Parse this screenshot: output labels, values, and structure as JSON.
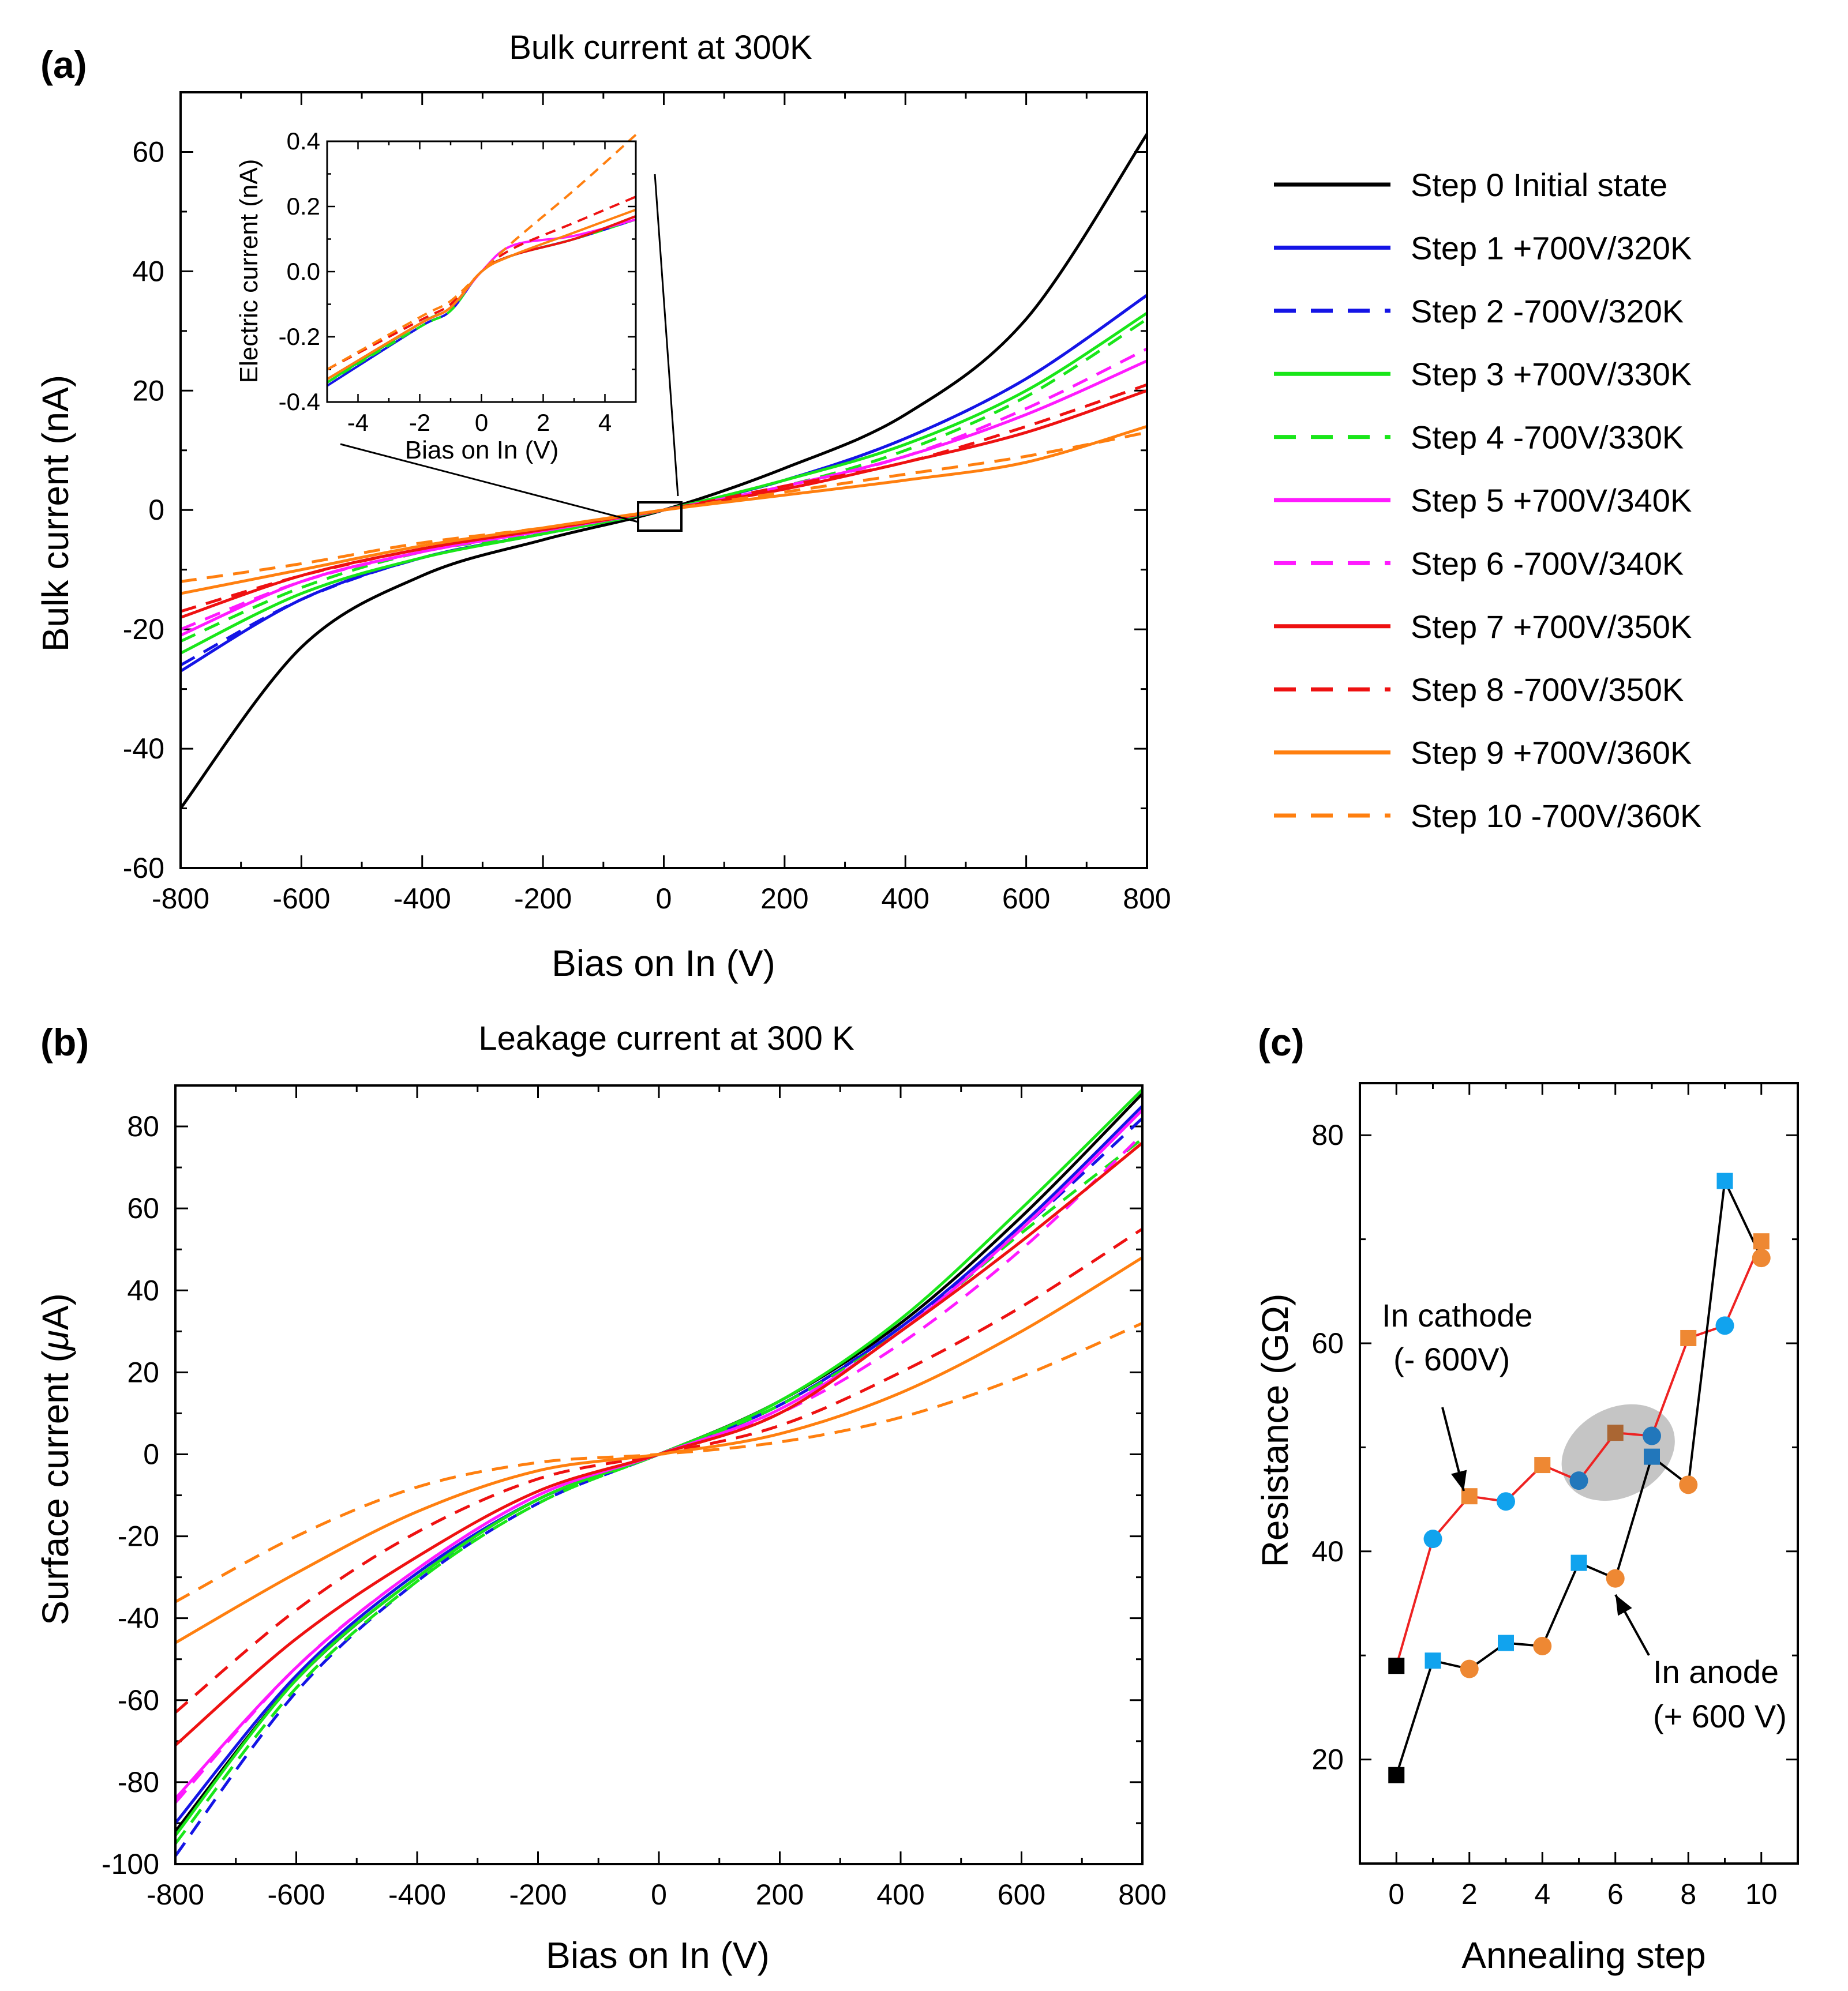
{
  "colors": {
    "black": "#000000",
    "blue": "#1414e6",
    "green": "#19e619",
    "magenta": "#ff1aff",
    "red": "#ee1111",
    "orange": "#ff7f0f",
    "c_red": "#ee2222",
    "c_orange": "#ee8833",
    "c_blue": "#11a3ee",
    "c_blue_dark": "#2277bb",
    "c_orange_dark": "#aa6633",
    "highlight": "#bbbbbb"
  },
  "legend": {
    "items": [
      {
        "label": "Step 0 Initial state",
        "color": "black",
        "dash": false
      },
      {
        "label": "Step 1 +700V/320K",
        "color": "blue",
        "dash": false
      },
      {
        "label": "Step 2 -700V/320K",
        "color": "blue",
        "dash": true
      },
      {
        "label": "Step 3 +700V/330K",
        "color": "green",
        "dash": false
      },
      {
        "label": "Step 4 -700V/330K",
        "color": "green",
        "dash": true
      },
      {
        "label": "Step 5 +700V/340K",
        "color": "magenta",
        "dash": false
      },
      {
        "label": "Step 6 -700V/340K",
        "color": "magenta",
        "dash": true
      },
      {
        "label": "Step 7 +700V/350K",
        "color": "red",
        "dash": false
      },
      {
        "label": "Step 8 -700V/350K",
        "color": "red",
        "dash": true
      },
      {
        "label": "Step 9 +700V/360K",
        "color": "orange",
        "dash": false
      },
      {
        "label": "Step 10 -700V/360K",
        "color": "orange",
        "dash": true
      }
    ]
  },
  "chart_data": [
    {
      "panel": "(a)",
      "type": "line",
      "title": "Bulk current at 300K",
      "xlabel": "Bias on In (V)",
      "ylabel": "Bulk current (nA)",
      "xlim": [
        -800,
        800
      ],
      "ylim": [
        -60,
        70
      ],
      "xticks": [
        -800,
        -600,
        -400,
        -200,
        0,
        200,
        400,
        600,
        800
      ],
      "yticks": [
        -60,
        -40,
        -20,
        0,
        20,
        40,
        60
      ],
      "x": [
        -800,
        -600,
        -400,
        -200,
        0,
        200,
        400,
        600,
        800
      ],
      "series": [
        {
          "name": "Step 0 Initial state",
          "color": "black",
          "dash": false,
          "values": [
            -50,
            -23,
            -11,
            -5,
            0,
            7,
            16,
            32,
            63
          ]
        },
        {
          "name": "Step 1 +700V/320K",
          "color": "blue",
          "dash": false,
          "values": [
            -27,
            -15,
            -8,
            -4,
            0,
            5,
            12,
            22,
            36
          ]
        },
        {
          "name": "Step 2 -700V/320K",
          "color": "blue",
          "dash": true,
          "values": [
            -26,
            -15,
            -8,
            -4,
            0,
            5,
            12,
            22,
            36
          ]
        },
        {
          "name": "Step 3 +700V/330K",
          "color": "green",
          "dash": false,
          "values": [
            -24,
            -14,
            -8,
            -4,
            0,
            5,
            11,
            20,
            33
          ]
        },
        {
          "name": "Step 4 -700V/330K",
          "color": "green",
          "dash": true,
          "values": [
            -22,
            -13,
            -7,
            -4,
            0,
            4,
            10,
            19,
            32
          ]
        },
        {
          "name": "Step 5 +700V/340K",
          "color": "magenta",
          "dash": false,
          "values": [
            -21,
            -12,
            -7,
            -3.5,
            0,
            4,
            9,
            16,
            25
          ]
        },
        {
          "name": "Step 6 -700V/340K",
          "color": "magenta",
          "dash": true,
          "values": [
            -20,
            -12,
            -7,
            -3.5,
            0,
            4,
            9,
            17,
            27
          ]
        },
        {
          "name": "Step 7 +700V/350K",
          "color": "red",
          "dash": false,
          "values": [
            -18,
            -11,
            -6.5,
            -3.3,
            0,
            3.5,
            8,
            13,
            20
          ]
        },
        {
          "name": "Step 8 -700V/350K",
          "color": "red",
          "dash": true,
          "values": [
            -17,
            -11,
            -6.5,
            -3.3,
            0,
            4,
            8,
            14,
            21
          ]
        },
        {
          "name": "Step 9 +700V/360K",
          "color": "orange",
          "dash": false,
          "values": [
            -14,
            -10,
            -6,
            -3,
            0,
            2.5,
            5,
            8,
            14
          ]
        },
        {
          "name": "Step 10 -700V/360K",
          "color": "orange",
          "dash": true,
          "values": [
            -12,
            -9,
            -5.5,
            -3,
            0,
            3,
            6,
            9,
            13
          ]
        }
      ],
      "inset": {
        "xlabel": "Bias on In (V)",
        "ylabel": "Electric current (nA)",
        "xlim": [
          -5,
          5
        ],
        "ylim": [
          -0.4,
          0.4
        ],
        "xticks": [
          -4,
          -2,
          0,
          2,
          4
        ],
        "yticks": [
          -0.4,
          -0.2,
          0.0,
          0.2,
          0.4
        ],
        "ytick_labels": [
          "-0.4",
          "-0.2",
          "0.0",
          "0.2",
          "0.4"
        ],
        "x": [
          -5,
          -2,
          -1,
          0,
          1,
          3,
          5
        ],
        "series": [
          {
            "name": "Step 1 +700V/320K",
            "color": "blue",
            "dash": false,
            "values": [
              -0.35,
              -0.17,
              -0.12,
              0.0,
              0.05,
              0.1,
              0.16
            ]
          },
          {
            "name": "Step 3 +700V/330K",
            "color": "green",
            "dash": false,
            "values": [
              -0.34,
              -0.16,
              -0.11,
              0.0,
              0.05,
              0.1,
              0.17
            ]
          },
          {
            "name": "Step 4 -700V/330K",
            "color": "green",
            "dash": true,
            "values": [
              -0.34,
              -0.17,
              -0.12,
              0.0,
              0.05,
              0.1,
              0.16
            ]
          },
          {
            "name": "Step 5 +700V/340K",
            "color": "magenta",
            "dash": false,
            "values": [
              -0.33,
              -0.16,
              -0.11,
              0.0,
              0.08,
              0.11,
              0.16
            ]
          },
          {
            "name": "Step 7 +700V/350K",
            "color": "red",
            "dash": false,
            "values": [
              -0.33,
              -0.16,
              -0.11,
              0.0,
              0.05,
              0.1,
              0.17
            ]
          },
          {
            "name": "Step 8 -700V/350K",
            "color": "red",
            "dash": true,
            "values": [
              -0.3,
              -0.15,
              -0.1,
              0.0,
              0.07,
              0.15,
              0.23
            ]
          },
          {
            "name": "Step 9 +700V/360K",
            "color": "orange",
            "dash": false,
            "values": [
              -0.33,
              -0.16,
              -0.11,
              0.0,
              0.05,
              0.12,
              0.19
            ]
          },
          {
            "name": "Step 10 -700V/360K",
            "color": "orange",
            "dash": true,
            "values": [
              -0.3,
              -0.14,
              -0.09,
              0.0,
              0.09,
              0.25,
              0.42
            ]
          }
        ]
      }
    },
    {
      "panel": "(b)",
      "type": "line",
      "title": "Leakage current at 300 K",
      "xlabel": "Bias on In (V)",
      "ylabel_prefix": "Surface current (",
      "ylabel_mu": "μ",
      "ylabel_suffix": "A)",
      "xlim": [
        -800,
        800
      ],
      "ylim": [
        -100,
        90
      ],
      "xticks": [
        -800,
        -600,
        -400,
        -200,
        0,
        200,
        400,
        600,
        800
      ],
      "yticks": [
        -100,
        -80,
        -60,
        -40,
        -20,
        0,
        20,
        40,
        60,
        80
      ],
      "x": [
        -800,
        -600,
        -400,
        -200,
        0,
        200,
        400,
        600,
        800
      ],
      "series": [
        {
          "name": "Step 0 Initial state",
          "color": "black",
          "dash": false,
          "values": [
            -92,
            -55,
            -30,
            -11,
            0,
            13,
            32,
            58,
            88
          ]
        },
        {
          "name": "Step 1 +700V/320K",
          "color": "blue",
          "dash": false,
          "values": [
            -90,
            -54,
            -29,
            -11,
            0,
            12,
            31,
            56,
            85
          ]
        },
        {
          "name": "Step 2 -700V/320K",
          "color": "blue",
          "dash": true,
          "values": [
            -98,
            -58,
            -31,
            -12,
            0,
            12,
            31,
            55,
            82
          ]
        },
        {
          "name": "Step 3 +700V/330K",
          "color": "green",
          "dash": false,
          "values": [
            -93,
            -55,
            -30,
            -11,
            0,
            13,
            33,
            60,
            89
          ]
        },
        {
          "name": "Step 4 -700V/330K",
          "color": "green",
          "dash": true,
          "values": [
            -95,
            -57,
            -31,
            -12,
            0,
            12,
            30,
            54,
            77
          ]
        },
        {
          "name": "Step 5 +700V/340K",
          "color": "magenta",
          "dash": false,
          "values": [
            -84,
            -52,
            -28,
            -10,
            0,
            11,
            30,
            55,
            84
          ]
        },
        {
          "name": "Step 6 -700V/340K",
          "color": "magenta",
          "dash": true,
          "values": [
            -85,
            -52,
            -28,
            -10,
            0,
            10,
            27,
            50,
            78
          ]
        },
        {
          "name": "Step 7 +700V/350K",
          "color": "red",
          "dash": false,
          "values": [
            -71,
            -45,
            -25,
            -9,
            0,
            10,
            30,
            52,
            76
          ]
        },
        {
          "name": "Step 8 -700V/350K",
          "color": "red",
          "dash": true,
          "values": [
            -63,
            -38,
            -19,
            -6,
            0,
            7,
            20,
            36,
            55
          ]
        },
        {
          "name": "Step 9 +700V/360K",
          "color": "orange",
          "dash": false,
          "values": [
            -46,
            -29,
            -14,
            -4,
            0,
            5,
            15,
            30,
            48
          ]
        },
        {
          "name": "Step 10 -700V/360K",
          "color": "orange",
          "dash": true,
          "values": [
            -36,
            -20,
            -8,
            -2,
            0,
            3,
            9,
            19,
            32
          ]
        }
      ]
    },
    {
      "panel": "(c)",
      "type": "scatter",
      "xlabel": "Annealing step",
      "ylabel": "Resistance (GΩ)",
      "xlim": [
        -1,
        11
      ],
      "ylim": [
        10,
        85
      ],
      "xticks": [
        0,
        2,
        4,
        6,
        8,
        10
      ],
      "yticks": [
        20,
        40,
        60,
        80
      ],
      "series": [
        {
          "name": "In cathode (- 600V)",
          "line_color": "c_red",
          "points": [
            {
              "x": 0,
              "y": 29,
              "marker": "square",
              "color": "black"
            },
            {
              "x": 1,
              "y": 41.2,
              "marker": "circle",
              "color": "c_blue"
            },
            {
              "x": 2,
              "y": 45.3,
              "marker": "square",
              "color": "c_orange"
            },
            {
              "x": 3,
              "y": 44.8,
              "marker": "circle",
              "color": "c_blue"
            },
            {
              "x": 4,
              "y": 48.3,
              "marker": "square",
              "color": "c_orange"
            },
            {
              "x": 5,
              "y": 46.8,
              "marker": "circle",
              "color": "c_blue_dark"
            },
            {
              "x": 6,
              "y": 51.4,
              "marker": "square",
              "color": "c_orange_dark"
            },
            {
              "x": 7,
              "y": 51.1,
              "marker": "circle",
              "color": "c_blue_dark"
            },
            {
              "x": 8,
              "y": 60.5,
              "marker": "square",
              "color": "c_orange"
            },
            {
              "x": 9,
              "y": 61.7,
              "marker": "circle",
              "color": "c_blue"
            },
            {
              "x": 10,
              "y": 69.8,
              "marker": "square",
              "color": "c_orange"
            }
          ]
        },
        {
          "name": "In anode (+ 600 V)",
          "line_color": "black",
          "points": [
            {
              "x": 0,
              "y": 18.5,
              "marker": "square",
              "color": "black"
            },
            {
              "x": 1,
              "y": 29.5,
              "marker": "square",
              "color": "c_blue"
            },
            {
              "x": 2,
              "y": 28.7,
              "marker": "circle",
              "color": "c_orange"
            },
            {
              "x": 3,
              "y": 31.2,
              "marker": "square",
              "color": "c_blue"
            },
            {
              "x": 4,
              "y": 30.9,
              "marker": "circle",
              "color": "c_orange"
            },
            {
              "x": 5,
              "y": 38.9,
              "marker": "square",
              "color": "c_blue"
            },
            {
              "x": 6,
              "y": 37.4,
              "marker": "circle",
              "color": "c_orange"
            },
            {
              "x": 7,
              "y": 49.1,
              "marker": "square",
              "color": "c_blue_dark"
            },
            {
              "x": 8,
              "y": 46.4,
              "marker": "circle",
              "color": "c_orange"
            },
            {
              "x": 9,
              "y": 75.6,
              "marker": "square",
              "color": "c_blue"
            },
            {
              "x": 10,
              "y": 68.2,
              "marker": "circle",
              "color": "c_orange"
            }
          ]
        }
      ],
      "highlight": {
        "x_range": [
          5,
          7
        ],
        "y_range": [
          44,
          55
        ]
      },
      "annotations": {
        "cathode": {
          "line1": "In cathode",
          "line2": "(- 600V)"
        },
        "anode": {
          "line1": "In anode",
          "line2": "(+ 600 V)"
        }
      }
    }
  ]
}
